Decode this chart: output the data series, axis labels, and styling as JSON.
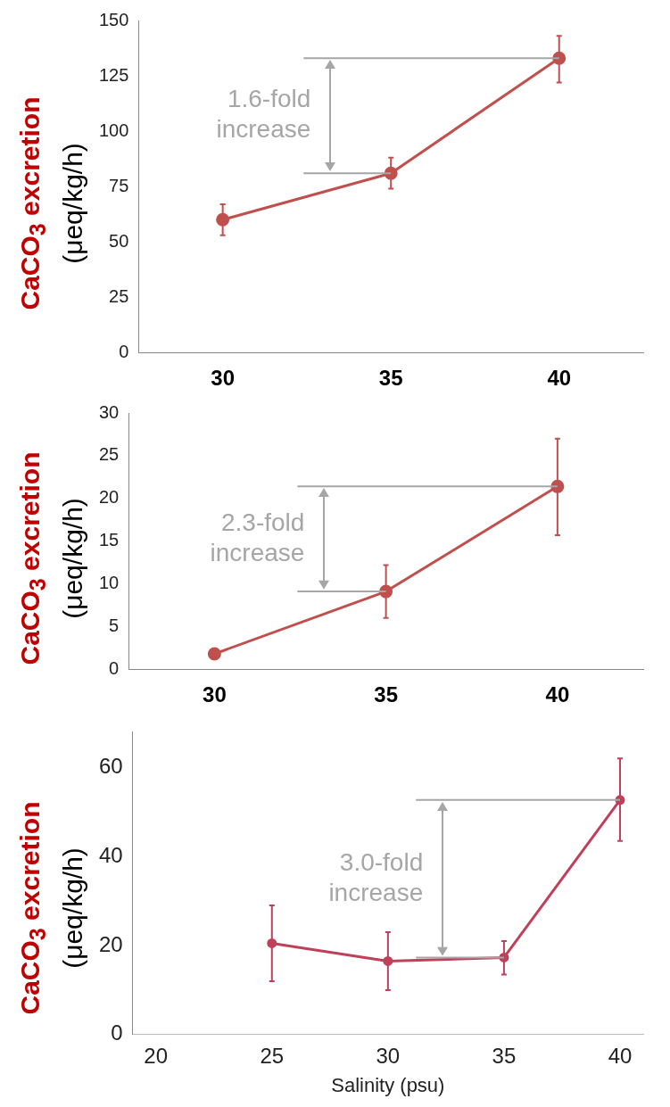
{
  "chart_data": [
    {
      "type": "line",
      "ylabel": "CaCO$_{3}$ excretion\n(μeq/kg/h)",
      "categories": [
        "30",
        "35",
        "40"
      ],
      "series": [
        {
          "color": "#c0504d",
          "values": [
            60,
            81,
            133
          ],
          "errors": [
            7,
            7,
            [
              122,
              143
            ]
          ]
        }
      ],
      "ylim": [
        0,
        150
      ],
      "yticks": [
        0,
        25,
        50,
        75,
        100,
        125,
        150
      ],
      "marker": "circle",
      "legend": false,
      "grid": false,
      "ref_lines": [
        {
          "axis": "y",
          "value": 81,
          "color": "#a6a6a6"
        },
        {
          "axis": "y",
          "value": 133,
          "color": "#a6a6a6"
        }
      ],
      "annotations": [
        "1.6-fold increase"
      ]
    },
    {
      "type": "line",
      "ylabel": "CaCO$_{3}$ excretion\n(μeq/kg/h)",
      "categories": [
        "30",
        "35",
        "40"
      ],
      "series": [
        {
          "color": "#c0504d",
          "values": [
            1.8,
            9.1,
            21.4
          ],
          "errors": [
            null,
            [
              6,
              12.2
            ],
            [
              15.7,
              27
            ]
          ]
        }
      ],
      "ylim": [
        0,
        30
      ],
      "yticks": [
        0,
        5,
        10,
        15,
        20,
        25,
        30
      ],
      "marker": "circle",
      "legend": false,
      "grid": false,
      "ref_lines": [
        {
          "axis": "y",
          "value": 9.1,
          "color": "#a6a6a6"
        },
        {
          "axis": "y",
          "value": 21.4,
          "color": "#a6a6a6"
        }
      ],
      "annotations": [
        "2.3-fold increase"
      ]
    },
    {
      "type": "line",
      "ylabel": "CaCO$_{3}$ excretion\n(μeq/kg/h)",
      "xlabel": "Salinity (psu)",
      "x": [
        25,
        30,
        35,
        40
      ],
      "series": [
        {
          "color": "#c0405a",
          "values": [
            20.5,
            16.5,
            17.3,
            52.7
          ],
          "errors": [
            [
              12,
              29
            ],
            [
              10,
              23
            ],
            [
              13.5,
              21
            ],
            [
              43.5,
              62
            ]
          ]
        }
      ],
      "xlim": [
        19,
        41
      ],
      "xticks": [
        20,
        25,
        30,
        35,
        40
      ],
      "ylim": [
        0,
        68
      ],
      "yticks": [
        0,
        20,
        40,
        60
      ],
      "marker": "circle",
      "legend": false,
      "grid": false,
      "ref_lines": [
        {
          "axis": "y",
          "value": 17.3,
          "color": "#a6a6a6"
        },
        {
          "axis": "y",
          "value": 52.7,
          "color": "#a6a6a6"
        }
      ],
      "annotations": [
        "3.0-fold increase"
      ]
    }
  ]
}
